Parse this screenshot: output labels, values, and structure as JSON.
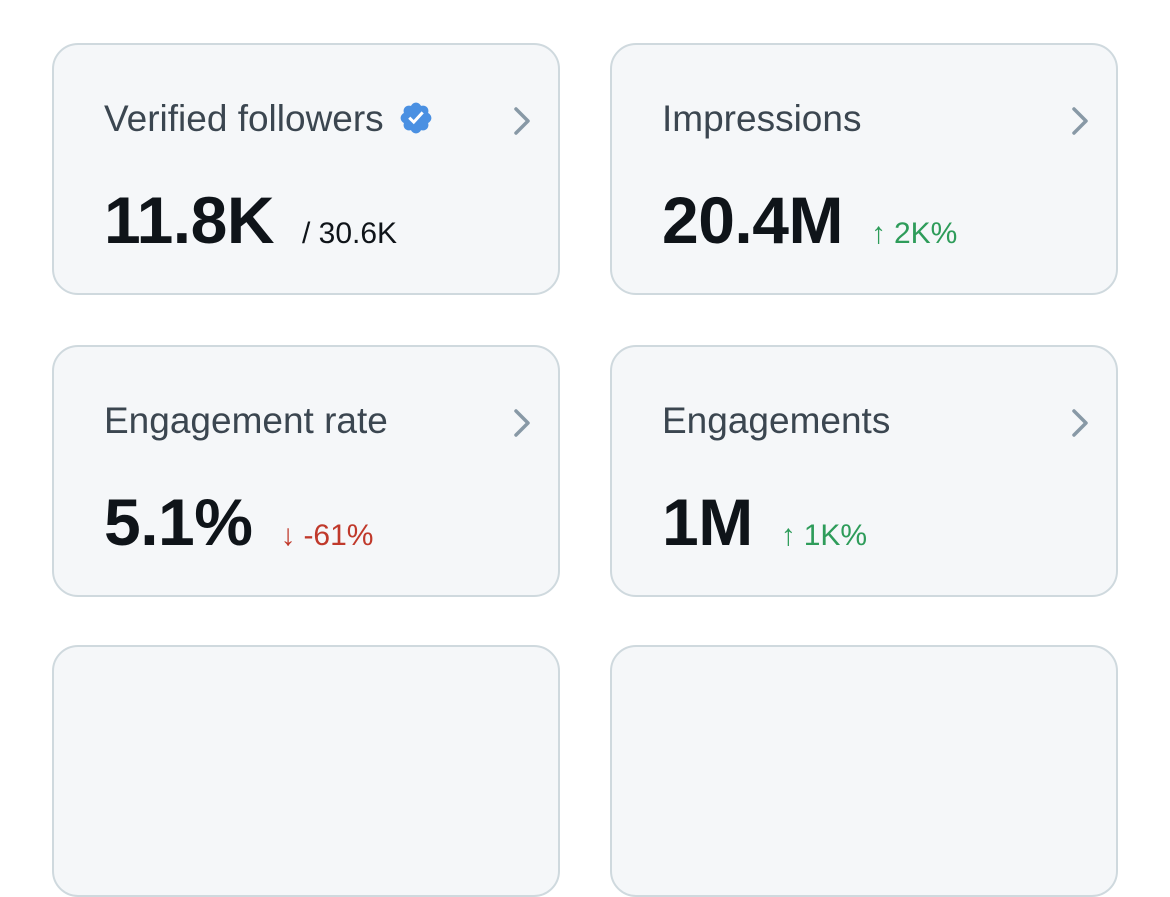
{
  "cards": [
    {
      "label": "Verified followers",
      "value": "11.8K",
      "sub": "/ 30.6K",
      "icon": "verified-badge-icon"
    },
    {
      "label": "Impressions",
      "value": "20.4M",
      "delta": {
        "arrow": "↑",
        "text": "2K%",
        "direction": "up"
      }
    },
    {
      "label": "Engagement rate",
      "value": "5.1%",
      "delta": {
        "arrow": "↓",
        "text": "-61%",
        "direction": "down"
      }
    },
    {
      "label": "Engagements",
      "value": "1M",
      "delta": {
        "arrow": "↑",
        "text": "1K%",
        "direction": "up"
      }
    }
  ],
  "colors": {
    "up": "#2e9c5a",
    "down": "#c0392b",
    "verified": "#1d9bf0",
    "chevron": "#8899a6"
  }
}
